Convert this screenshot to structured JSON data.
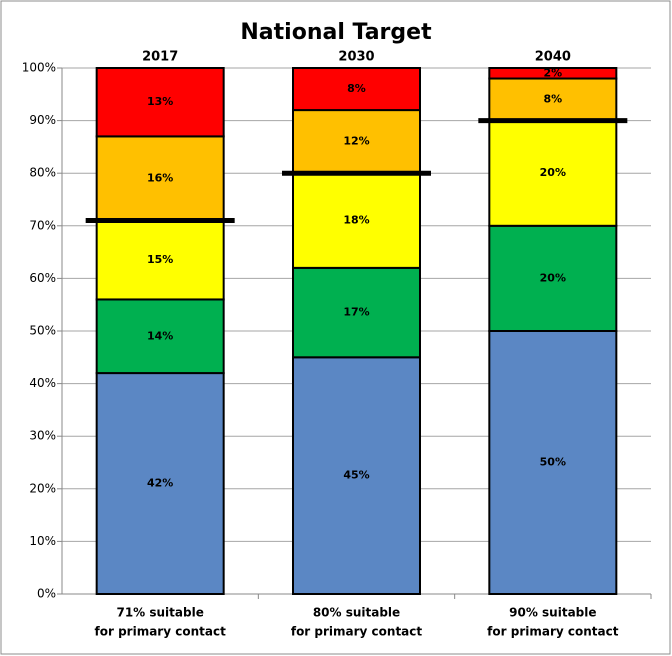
{
  "chart_data": {
    "type": "stacked-bar",
    "title": "National Target",
    "column_titles": [
      "2017",
      "2030",
      "2040"
    ],
    "categories": [
      [
        "71% suitable",
        "for primary contact"
      ],
      [
        "80% suitable",
        "for primary contact"
      ],
      [
        "90% suitable",
        "for primary contact"
      ]
    ],
    "series": [
      {
        "color": "#5b87c4",
        "values": [
          42,
          45,
          50
        ],
        "value_labels": [
          "42%",
          "45%",
          "50%"
        ]
      },
      {
        "color": "#00b050",
        "values": [
          14,
          17,
          20
        ],
        "value_labels": [
          "14%",
          "17%",
          "20%"
        ]
      },
      {
        "color": "#ffff00",
        "values": [
          15,
          18,
          20
        ],
        "value_labels": [
          "15%",
          "18%",
          "20%"
        ]
      },
      {
        "color": "#ffc000",
        "values": [
          16,
          12,
          8
        ],
        "value_labels": [
          "16%",
          "12%",
          "8%"
        ]
      },
      {
        "color": "#ff0000",
        "values": [
          13,
          8,
          2
        ],
        "value_labels": [
          "13%",
          "8%",
          "2%"
        ]
      }
    ],
    "targets": [
      71,
      80,
      90
    ],
    "ylim": [
      0,
      100
    ],
    "yticks": [
      {
        "value": 0,
        "label": "0%"
      },
      {
        "value": 10,
        "label": "10%"
      },
      {
        "value": 20,
        "label": "20%"
      },
      {
        "value": 30,
        "label": "30%"
      },
      {
        "value": 40,
        "label": "40%"
      },
      {
        "value": 50,
        "label": "50%"
      },
      {
        "value": 60,
        "label": "60%"
      },
      {
        "value": 70,
        "label": "70%"
      },
      {
        "value": 80,
        "label": "80%"
      },
      {
        "value": 90,
        "label": "90%"
      },
      {
        "value": 100,
        "label": "100%"
      }
    ],
    "grid": true
  }
}
